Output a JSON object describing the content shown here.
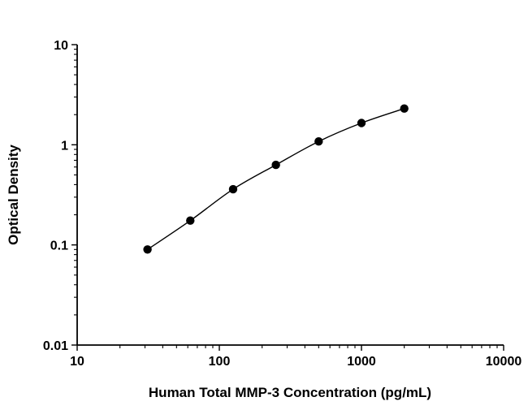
{
  "chart_data": {
    "type": "scatter",
    "title": "",
    "xlabel": "Human Total MMP-3 Concentration (pg/mL)",
    "ylabel": "Optical Density",
    "xscale": "log",
    "yscale": "log",
    "xlim": [
      10,
      10000
    ],
    "ylim": [
      0.01,
      10
    ],
    "x_tick_labels": [
      "10",
      "100",
      "1000",
      "10000"
    ],
    "y_tick_labels": [
      "0.01",
      "0.1",
      "1",
      "10"
    ],
    "x": [
      31.25,
      62.5,
      125,
      250,
      500,
      1000,
      2000
    ],
    "y": [
      0.09,
      0.175,
      0.36,
      0.63,
      1.08,
      1.65,
      2.3
    ],
    "series_name": "standard-curve",
    "marker": "circle",
    "marker_color": "#000000",
    "line_color": "#000000",
    "grid": false,
    "legend_position": "none"
  }
}
